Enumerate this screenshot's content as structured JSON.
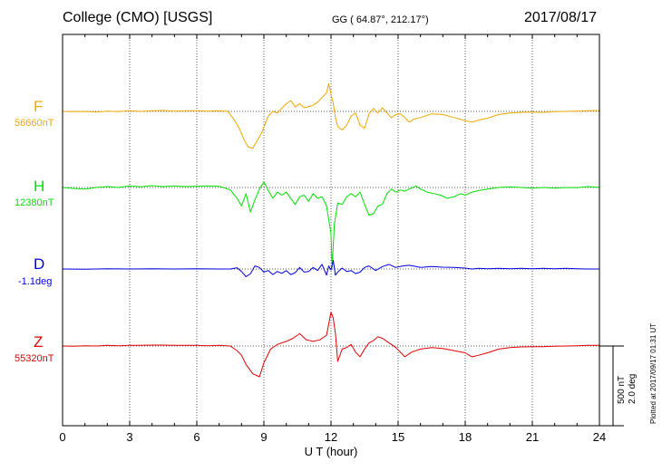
{
  "header": {
    "station": "College (CMO)  [USGS]",
    "coords": "GG ( 64.87°, 212.17°)",
    "date": "2017/08/17"
  },
  "scale": {
    "nt_label": "500 nT",
    "deg_label": "2.0 deg"
  },
  "plotted_note": "Plotted at 2017/09/17 01:31  UT",
  "colors": {
    "F": "#f0a800",
    "H": "#00e000",
    "D": "#0000e0",
    "Z": "#e00000",
    "grid": "#555555"
  },
  "chart_data": {
    "type": "line",
    "title": "College (CMO)  [USGS]",
    "xlabel": "U T (hour)",
    "xlim": [
      0,
      24
    ],
    "x_ticks": [
      "0",
      "3",
      "6",
      "9",
      "12",
      "15",
      "18",
      "21",
      "24"
    ],
    "grid": true,
    "series": [
      {
        "name": "F",
        "baseline_label": "56660nT",
        "color": "#f0a800",
        "points": [
          [
            0,
            0
          ],
          [
            0.5,
            -1
          ],
          [
            1,
            0
          ],
          [
            1.5,
            -2
          ],
          [
            2,
            1
          ],
          [
            2.5,
            -1
          ],
          [
            3,
            2
          ],
          [
            3.5,
            0
          ],
          [
            4,
            2
          ],
          [
            4.5,
            3
          ],
          [
            5,
            1
          ],
          [
            5.5,
            2
          ],
          [
            6,
            2
          ],
          [
            6.5,
            1
          ],
          [
            7,
            2
          ],
          [
            7.4,
            0
          ],
          [
            7.7,
            -30
          ],
          [
            7.9,
            -55
          ],
          [
            8.1,
            -90
          ],
          [
            8.3,
            -115
          ],
          [
            8.5,
            -120
          ],
          [
            8.7,
            -95
          ],
          [
            8.9,
            -70
          ],
          [
            9,
            -50
          ],
          [
            9.2,
            -15
          ],
          [
            9.4,
            0
          ],
          [
            9.6,
            -5
          ],
          [
            9.8,
            10
          ],
          [
            10,
            25
          ],
          [
            10.2,
            35
          ],
          [
            10.4,
            15
          ],
          [
            10.6,
            25
          ],
          [
            10.8,
            12
          ],
          [
            11,
            15
          ],
          [
            11.2,
            20
          ],
          [
            11.4,
            30
          ],
          [
            11.6,
            45
          ],
          [
            11.8,
            60
          ],
          [
            11.9,
            90
          ],
          [
            12,
            55
          ],
          [
            12.1,
            25
          ],
          [
            12.2,
            -20
          ],
          [
            12.3,
            -50
          ],
          [
            12.5,
            -60
          ],
          [
            12.7,
            -45
          ],
          [
            12.9,
            -15
          ],
          [
            13.1,
            -5
          ],
          [
            13.3,
            -45
          ],
          [
            13.5,
            -55
          ],
          [
            13.7,
            -8
          ],
          [
            13.9,
            10
          ],
          [
            14.1,
            -5
          ],
          [
            14.3,
            12
          ],
          [
            14.5,
            -5
          ],
          [
            14.7,
            -20
          ],
          [
            14.9,
            -10
          ],
          [
            15.1,
            -8
          ],
          [
            15.3,
            -20
          ],
          [
            15.5,
            -35
          ],
          [
            15.7,
            -25
          ],
          [
            16,
            -20
          ],
          [
            16.5,
            -8
          ],
          [
            17,
            -10
          ],
          [
            17.5,
            -20
          ],
          [
            18,
            -30
          ],
          [
            18.3,
            -35
          ],
          [
            18.6,
            -28
          ],
          [
            19,
            -22
          ],
          [
            19.5,
            -10
          ],
          [
            20,
            -5
          ],
          [
            20.5,
            -3
          ],
          [
            21,
            -2
          ],
          [
            21.5,
            -3
          ],
          [
            22,
            -1
          ],
          [
            22.5,
            0
          ],
          [
            23,
            1
          ],
          [
            23.5,
            2
          ],
          [
            24,
            3
          ]
        ]
      },
      {
        "name": "H",
        "baseline_label": "12380nT",
        "color": "#00e000",
        "points": [
          [
            0,
            0
          ],
          [
            0.5,
            -3
          ],
          [
            1,
            -5
          ],
          [
            1.5,
            0
          ],
          [
            2,
            3
          ],
          [
            2.5,
            0
          ],
          [
            3,
            5
          ],
          [
            3.5,
            2
          ],
          [
            4,
            6
          ],
          [
            4.5,
            3
          ],
          [
            5,
            5
          ],
          [
            5.5,
            3
          ],
          [
            6,
            4
          ],
          [
            6.5,
            5
          ],
          [
            7,
            4
          ],
          [
            7.5,
            -8
          ],
          [
            7.8,
            -35
          ],
          [
            8,
            -60
          ],
          [
            8.2,
            -20
          ],
          [
            8.4,
            -80
          ],
          [
            8.6,
            -40
          ],
          [
            8.8,
            -5
          ],
          [
            9,
            18
          ],
          [
            9.2,
            -10
          ],
          [
            9.4,
            -35
          ],
          [
            9.6,
            -15
          ],
          [
            9.8,
            -25
          ],
          [
            10,
            -15
          ],
          [
            10.2,
            -35
          ],
          [
            10.4,
            -55
          ],
          [
            10.6,
            -30
          ],
          [
            10.8,
            -25
          ],
          [
            11,
            -45
          ],
          [
            11.2,
            -20
          ],
          [
            11.4,
            -35
          ],
          [
            11.6,
            -30
          ],
          [
            11.8,
            -60
          ],
          [
            12,
            -150
          ],
          [
            12.05,
            -260
          ],
          [
            12.15,
            -120
          ],
          [
            12.3,
            -50
          ],
          [
            12.5,
            -55
          ],
          [
            12.7,
            -30
          ],
          [
            12.9,
            -20
          ],
          [
            13.1,
            -30
          ],
          [
            13.3,
            -15
          ],
          [
            13.5,
            -55
          ],
          [
            13.7,
            -90
          ],
          [
            13.9,
            -85
          ],
          [
            14.1,
            -60
          ],
          [
            14.3,
            -55
          ],
          [
            14.5,
            -20
          ],
          [
            14.7,
            -5
          ],
          [
            14.9,
            -15
          ],
          [
            15.1,
            -8
          ],
          [
            15.3,
            -12
          ],
          [
            15.5,
            -5
          ],
          [
            15.8,
            5
          ],
          [
            16,
            -5
          ],
          [
            16.3,
            -15
          ],
          [
            16.6,
            -20
          ],
          [
            16.9,
            -25
          ],
          [
            17.2,
            -35
          ],
          [
            17.5,
            -30
          ],
          [
            17.8,
            -20
          ],
          [
            18,
            -25
          ],
          [
            18.3,
            -15
          ],
          [
            18.6,
            -10
          ],
          [
            19,
            -5
          ],
          [
            19.5,
            0
          ],
          [
            20,
            2
          ],
          [
            20.5,
            0
          ],
          [
            21,
            -2
          ],
          [
            21.5,
            0
          ],
          [
            22,
            -2
          ],
          [
            22.5,
            0
          ],
          [
            23,
            -1
          ],
          [
            23.5,
            3
          ],
          [
            24,
            0
          ]
        ]
      },
      {
        "name": "D",
        "baseline_label": "-1.1deg",
        "color": "#0000e0",
        "points": [
          [
            0,
            0
          ],
          [
            1,
            -1
          ],
          [
            2,
            1
          ],
          [
            3,
            0
          ],
          [
            4,
            1
          ],
          [
            5,
            0
          ],
          [
            6,
            1
          ],
          [
            7,
            0
          ],
          [
            7.5,
            0
          ],
          [
            7.8,
            4
          ],
          [
            8,
            -8
          ],
          [
            8.2,
            -25
          ],
          [
            8.4,
            -15
          ],
          [
            8.6,
            10
          ],
          [
            8.8,
            5
          ],
          [
            9,
            -10
          ],
          [
            9.2,
            -5
          ],
          [
            9.4,
            -18
          ],
          [
            9.6,
            -8
          ],
          [
            9.8,
            -14
          ],
          [
            10,
            -5
          ],
          [
            10.2,
            -18
          ],
          [
            10.4,
            -12
          ],
          [
            10.6,
            5
          ],
          [
            10.8,
            -10
          ],
          [
            11,
            -8
          ],
          [
            11.2,
            5
          ],
          [
            11.4,
            -5
          ],
          [
            11.6,
            15
          ],
          [
            11.8,
            -20
          ],
          [
            11.9,
            10
          ],
          [
            12,
            -3
          ],
          [
            12.1,
            28
          ],
          [
            12.2,
            -20
          ],
          [
            12.3,
            -10
          ],
          [
            12.5,
            3
          ],
          [
            12.7,
            -8
          ],
          [
            12.9,
            -5
          ],
          [
            13.1,
            -15
          ],
          [
            13.3,
            -10
          ],
          [
            13.5,
            5
          ],
          [
            13.7,
            10
          ],
          [
            14,
            -5
          ],
          [
            14.3,
            8
          ],
          [
            14.6,
            15
          ],
          [
            14.9,
            5
          ],
          [
            15.2,
            10
          ],
          [
            15.5,
            12
          ],
          [
            15.8,
            8
          ],
          [
            16,
            5
          ],
          [
            16.5,
            8
          ],
          [
            17,
            6
          ],
          [
            17.5,
            5
          ],
          [
            18,
            3
          ],
          [
            18.3,
            0
          ],
          [
            18.6,
            2
          ],
          [
            19,
            1
          ],
          [
            19.5,
            2
          ],
          [
            20,
            1
          ],
          [
            20.5,
            2
          ],
          [
            21,
            1
          ],
          [
            21.5,
            2
          ],
          [
            22,
            1
          ],
          [
            22.5,
            2
          ],
          [
            23,
            1
          ],
          [
            23.5,
            0
          ],
          [
            24,
            0
          ]
        ]
      },
      {
        "name": "Z",
        "baseline_label": "55320nT",
        "color": "#e00000",
        "points": [
          [
            0,
            0
          ],
          [
            0.5,
            -1
          ],
          [
            1,
            1
          ],
          [
            1.5,
            0
          ],
          [
            2,
            2
          ],
          [
            2.5,
            1
          ],
          [
            3,
            2
          ],
          [
            3.5,
            2
          ],
          [
            4,
            3
          ],
          [
            4.5,
            3
          ],
          [
            5,
            2
          ],
          [
            5.5,
            2
          ],
          [
            6,
            2
          ],
          [
            6.5,
            1
          ],
          [
            7,
            2
          ],
          [
            7.5,
            0
          ],
          [
            7.8,
            -15
          ],
          [
            8,
            -30
          ],
          [
            8.2,
            -60
          ],
          [
            8.5,
            -90
          ],
          [
            8.8,
            -100
          ],
          [
            9,
            -55
          ],
          [
            9.3,
            -10
          ],
          [
            9.6,
            5
          ],
          [
            10,
            15
          ],
          [
            10.3,
            25
          ],
          [
            10.6,
            40
          ],
          [
            10.9,
            20
          ],
          [
            11.2,
            15
          ],
          [
            11.5,
            20
          ],
          [
            11.8,
            35
          ],
          [
            12,
            110
          ],
          [
            12.1,
            90
          ],
          [
            12.2,
            40
          ],
          [
            12.3,
            -50
          ],
          [
            12.5,
            -10
          ],
          [
            12.7,
            -5
          ],
          [
            12.9,
            5
          ],
          [
            13.1,
            -20
          ],
          [
            13.3,
            -35
          ],
          [
            13.5,
            -10
          ],
          [
            13.7,
            10
          ],
          [
            13.9,
            18
          ],
          [
            14.1,
            30
          ],
          [
            14.3,
            25
          ],
          [
            14.5,
            15
          ],
          [
            14.7,
            5
          ],
          [
            14.9,
            -5
          ],
          [
            15.1,
            -20
          ],
          [
            15.3,
            -35
          ],
          [
            15.6,
            -20
          ],
          [
            16,
            -10
          ],
          [
            16.5,
            -5
          ],
          [
            17,
            -8
          ],
          [
            17.5,
            -15
          ],
          [
            18,
            -22
          ],
          [
            18.3,
            -35
          ],
          [
            18.6,
            -30
          ],
          [
            19,
            -22
          ],
          [
            19.5,
            -10
          ],
          [
            20,
            -5
          ],
          [
            20.5,
            -3
          ],
          [
            21,
            -2
          ],
          [
            21.5,
            -2
          ],
          [
            22,
            -1
          ],
          [
            22.5,
            0
          ],
          [
            23,
            1
          ],
          [
            23.5,
            2
          ],
          [
            24,
            2
          ]
        ]
      }
    ]
  }
}
